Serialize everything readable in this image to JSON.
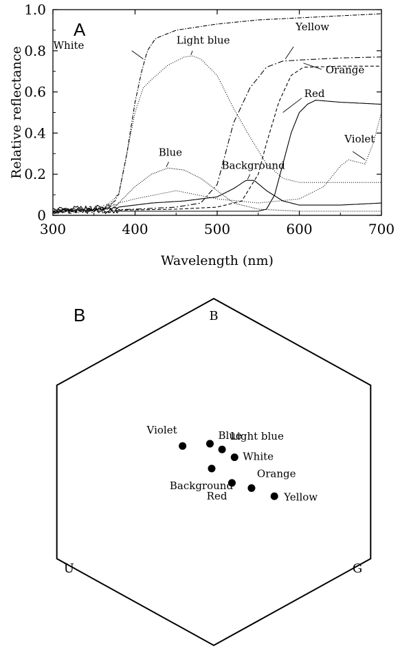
{
  "chart_data": [
    {
      "type": "line",
      "panel_label": "A",
      "xlabel": "Wavelength (nm)",
      "ylabel": "Relative reflectance",
      "xlim": [
        300,
        700
      ],
      "ylim": [
        0,
        1.0
      ],
      "xticks": [
        300,
        400,
        500,
        600,
        700
      ],
      "yticks": [
        0,
        0.2,
        0.4,
        0.6,
        0.8,
        1.0
      ],
      "ytick_labels": [
        "0",
        "0.2",
        "0.4",
        "0.6",
        "0.8",
        "1.0"
      ],
      "grid": false,
      "legend": "none",
      "series": [
        {
          "name": "White",
          "dash": "6,2,1.5,2",
          "label": {
            "text": "White",
            "x": 338,
            "y": 0.81,
            "anchor": "end"
          },
          "leader": [
            [
              396,
              0.8
            ],
            [
              410,
              0.76
            ]
          ],
          "points": [
            [
              300,
              0.02
            ],
            [
              340,
              0.03
            ],
            [
              360,
              0.035
            ],
            [
              370,
              0.05
            ],
            [
              380,
              0.1
            ],
            [
              390,
              0.3
            ],
            [
              400,
              0.55
            ],
            [
              408,
              0.7
            ],
            [
              415,
              0.8
            ],
            [
              425,
              0.86
            ],
            [
              450,
              0.9
            ],
            [
              500,
              0.93
            ],
            [
              550,
              0.95
            ],
            [
              600,
              0.96
            ],
            [
              650,
              0.97
            ],
            [
              700,
              0.98
            ]
          ]
        },
        {
          "name": "Light blue",
          "dash": "1,2",
          "label": {
            "text": "Light blue",
            "x": 483,
            "y": 0.835,
            "anchor": "middle"
          },
          "leader": [
            [
              470,
              0.8
            ],
            [
              468,
              0.78
            ]
          ],
          "points": [
            [
              300,
              0.02
            ],
            [
              350,
              0.025
            ],
            [
              370,
              0.05
            ],
            [
              380,
              0.1
            ],
            [
              390,
              0.3
            ],
            [
              400,
              0.5
            ],
            [
              410,
              0.62
            ],
            [
              420,
              0.66
            ],
            [
              440,
              0.73
            ],
            [
              460,
              0.77
            ],
            [
              470,
              0.775
            ],
            [
              480,
              0.76
            ],
            [
              500,
              0.68
            ],
            [
              520,
              0.52
            ],
            [
              540,
              0.38
            ],
            [
              560,
              0.25
            ],
            [
              580,
              0.18
            ],
            [
              600,
              0.16
            ],
            [
              620,
              0.16
            ],
            [
              650,
              0.16
            ],
            [
              700,
              0.16
            ]
          ]
        },
        {
          "name": "Yellow",
          "dash": "8,3,2,3",
          "label": {
            "text": "Yellow",
            "x": 616,
            "y": 0.9,
            "anchor": "middle"
          },
          "leader": [
            [
              593,
              0.82
            ],
            [
              583,
              0.76
            ]
          ],
          "points": [
            [
              300,
              0.02
            ],
            [
              400,
              0.03
            ],
            [
              450,
              0.04
            ],
            [
              480,
              0.06
            ],
            [
              500,
              0.15
            ],
            [
              510,
              0.3
            ],
            [
              520,
              0.45
            ],
            [
              540,
              0.62
            ],
            [
              560,
              0.72
            ],
            [
              580,
              0.75
            ],
            [
              600,
              0.755
            ],
            [
              650,
              0.765
            ],
            [
              700,
              0.77
            ]
          ]
        },
        {
          "name": "Orange",
          "dash": "5,3",
          "label": {
            "text": "Orange",
            "x": 632,
            "y": 0.69,
            "anchor": "start"
          },
          "leader": [
            [
              627,
              0.71
            ],
            [
              605,
              0.74
            ]
          ],
          "points": [
            [
              300,
              0.02
            ],
            [
              450,
              0.03
            ],
            [
              500,
              0.04
            ],
            [
              530,
              0.07
            ],
            [
              550,
              0.2
            ],
            [
              560,
              0.35
            ],
            [
              575,
              0.55
            ],
            [
              590,
              0.68
            ],
            [
              605,
              0.72
            ],
            [
              650,
              0.725
            ],
            [
              700,
              0.725
            ]
          ]
        },
        {
          "name": "Red",
          "dash": "",
          "label": {
            "text": "Red",
            "x": 606,
            "y": 0.575,
            "anchor": "start"
          },
          "leader": [
            [
              603,
              0.57
            ],
            [
              580,
              0.5
            ]
          ],
          "points": [
            [
              300,
              0.02
            ],
            [
              500,
              0.02
            ],
            [
              550,
              0.02
            ],
            [
              560,
              0.03
            ],
            [
              570,
              0.1
            ],
            [
              580,
              0.25
            ],
            [
              590,
              0.4
            ],
            [
              600,
              0.5
            ],
            [
              610,
              0.54
            ],
            [
              620,
              0.56
            ],
            [
              650,
              0.55
            ],
            [
              700,
              0.54
            ]
          ]
        },
        {
          "name": "Violet",
          "dash": "1,2",
          "label": {
            "text": "Violet",
            "x": 655,
            "y": 0.355,
            "anchor": "start"
          },
          "leader": [
            [
              665,
              0.31
            ],
            [
              680,
              0.27
            ]
          ],
          "points": [
            [
              300,
              0.02
            ],
            [
              350,
              0.03
            ],
            [
              400,
              0.08
            ],
            [
              450,
              0.12
            ],
            [
              500,
              0.08
            ],
            [
              550,
              0.06
            ],
            [
              600,
              0.08
            ],
            [
              630,
              0.14
            ],
            [
              650,
              0.24
            ],
            [
              660,
              0.27
            ],
            [
              680,
              0.25
            ],
            [
              690,
              0.35
            ],
            [
              700,
              0.5
            ]
          ]
        },
        {
          "name": "Blue",
          "dash": "1,1.5",
          "label": {
            "text": "Blue",
            "x": 443,
            "y": 0.29,
            "anchor": "middle"
          },
          "leader": [
            [
              441,
              0.26
            ],
            [
              438,
              0.235
            ]
          ],
          "points": [
            [
              300,
              0.02
            ],
            [
              360,
              0.03
            ],
            [
              380,
              0.06
            ],
            [
              400,
              0.14
            ],
            [
              420,
              0.2
            ],
            [
              440,
              0.23
            ],
            [
              460,
              0.22
            ],
            [
              480,
              0.18
            ],
            [
              500,
              0.12
            ],
            [
              520,
              0.06
            ],
            [
              550,
              0.03
            ],
            [
              600,
              0.02
            ],
            [
              700,
              0.02
            ]
          ]
        },
        {
          "name": "Background",
          "dash": "",
          "label": {
            "text": "Background",
            "x": 544,
            "y": 0.225,
            "anchor": "middle"
          },
          "leader": [
            [
              540,
              0.2
            ],
            [
              537,
              0.175
            ]
          ],
          "points": [
            [
              300,
              0.03
            ],
            [
              380,
              0.04
            ],
            [
              420,
              0.06
            ],
            [
              460,
              0.07
            ],
            [
              500,
              0.09
            ],
            [
              520,
              0.13
            ],
            [
              535,
              0.17
            ],
            [
              545,
              0.17
            ],
            [
              560,
              0.12
            ],
            [
              580,
              0.07
            ],
            [
              600,
              0.05
            ],
            [
              650,
              0.05
            ],
            [
              700,
              0.06
            ]
          ]
        }
      ]
    },
    {
      "type": "scatter",
      "panel_label": "B",
      "space": "hexagon",
      "vertices": [
        "B",
        "G",
        "U"
      ],
      "grid": false,
      "legend": "none",
      "points": [
        {
          "name": "Violet",
          "x": -0.18,
          "y": 0.15,
          "label_anchor": "end",
          "label_dx": -8,
          "label_dy": -18
        },
        {
          "name": "Blue",
          "x": -0.022,
          "y": 0.163,
          "label_anchor": "start",
          "label_dx": 12,
          "label_dy": -7
        },
        {
          "name": "Light blue",
          "x": 0.048,
          "y": 0.13,
          "label_anchor": "start",
          "label_dx": 12,
          "label_dy": -14
        },
        {
          "name": "White",
          "x": 0.12,
          "y": 0.085,
          "label_anchor": "start",
          "label_dx": 12,
          "label_dy": 4
        },
        {
          "name": "Background",
          "x": -0.012,
          "y": 0.02,
          "label_anchor": "middle",
          "label_dx": -15,
          "label_dy": 30
        },
        {
          "name": "Red",
          "x": 0.105,
          "y": -0.063,
          "label_anchor": "end",
          "label_dx": -7,
          "label_dy": 24
        },
        {
          "name": "Orange",
          "x": 0.218,
          "y": -0.093,
          "label_anchor": "start",
          "label_dx": 8,
          "label_dy": -16
        },
        {
          "name": "Yellow",
          "x": 0.35,
          "y": -0.14,
          "label_anchor": "start",
          "label_dx": 14,
          "label_dy": 6
        }
      ]
    }
  ]
}
